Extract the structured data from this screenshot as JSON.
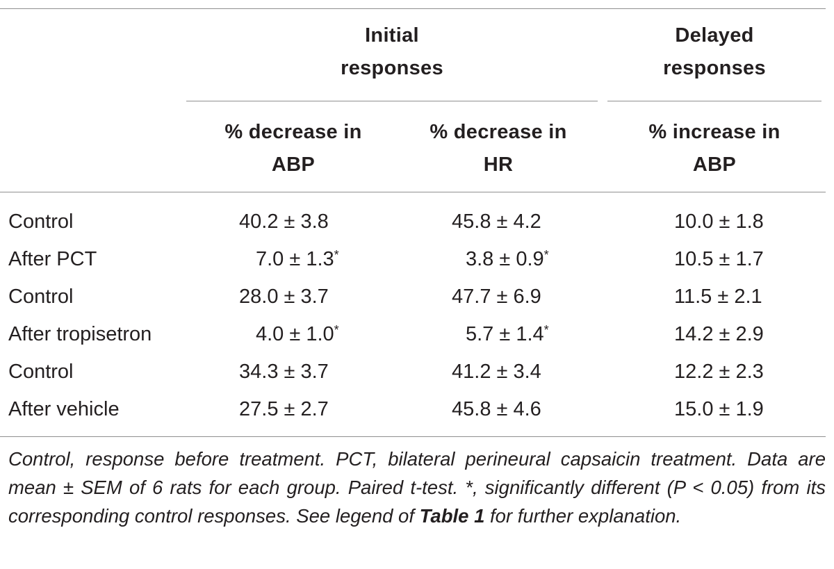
{
  "table": {
    "group_headers": {
      "initial": [
        "Initial",
        "responses"
      ],
      "delayed": [
        "Delayed",
        "responses"
      ]
    },
    "column_headers": [
      [
        "% decrease in",
        "ABP"
      ],
      [
        "% decrease in",
        "HR"
      ],
      [
        "% increase in",
        "ABP"
      ]
    ],
    "rows": [
      {
        "label": "Control",
        "abp_decrease": "40.2 ± 3.8",
        "abp_sig": "",
        "hr_decrease": "45.8 ± 4.2",
        "hr_sig": "",
        "abp_increase": "10.0 ± 1.8"
      },
      {
        "label": "After PCT",
        "abp_decrease": "7.0 ± 1.3",
        "abp_sig": "*",
        "hr_decrease": "3.8 ± 0.9",
        "hr_sig": "*",
        "abp_increase": "10.5 ± 1.7"
      },
      {
        "label": "Control",
        "abp_decrease": "28.0 ± 3.7",
        "abp_sig": "",
        "hr_decrease": "47.7 ± 6.9",
        "hr_sig": "",
        "abp_increase": "11.5 ± 2.1"
      },
      {
        "label": "After tropisetron",
        "abp_decrease": "4.0 ± 1.0",
        "abp_sig": "*",
        "hr_decrease": "5.7 ± 1.4",
        "hr_sig": "*",
        "abp_increase": "14.2 ± 2.9"
      },
      {
        "label": "Control",
        "abp_decrease": "34.3 ± 3.7",
        "abp_sig": "",
        "hr_decrease": "41.2 ± 3.4",
        "hr_sig": "",
        "abp_increase": "12.2 ± 2.3"
      },
      {
        "label": "After vehicle",
        "abp_decrease": "27.5 ± 2.7",
        "abp_sig": "",
        "hr_decrease": "45.8 ± 4.6",
        "hr_sig": "",
        "abp_increase": "15.0 ± 1.9"
      }
    ]
  },
  "footnote": {
    "part1": "Control, response before treatment. PCT, bilateral perineural capsaicin treatment. Data are mean ± SEM of 6 rats for each group. Paired t-test. *, significantly different (P < 0.05) from its corresponding control responses. See legend of ",
    "ref": "Table 1",
    "part2": " for further explanation."
  }
}
